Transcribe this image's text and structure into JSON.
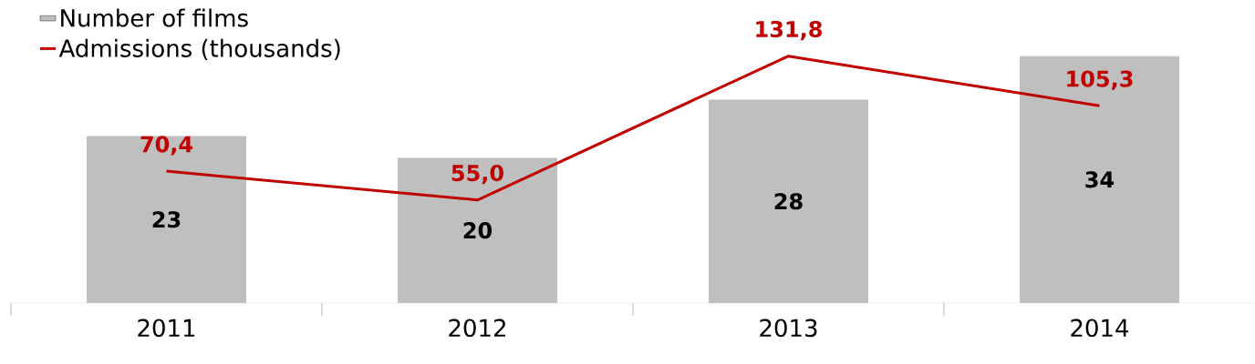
{
  "chart_data": {
    "type": "bar",
    "categories": [
      "2011",
      "2012",
      "2013",
      "2014"
    ],
    "series": [
      {
        "name": "Number of films",
        "color": "#bfbfbf",
        "values": [
          23,
          20,
          28,
          34
        ],
        "value_labels": [
          "23",
          "20",
          "28",
          "34"
        ]
      },
      {
        "name": "Admissions (thousands)",
        "type": "line",
        "axis": "y2",
        "color": "#c00000",
        "values": [
          70.4,
          55.0,
          131.8,
          105.3
        ],
        "value_labels": [
          "70,4",
          "55,0",
          "131,8",
          "105,3"
        ]
      }
    ],
    "tick_labels": "x",
    "legend": "top left",
    "marker": "none"
  }
}
